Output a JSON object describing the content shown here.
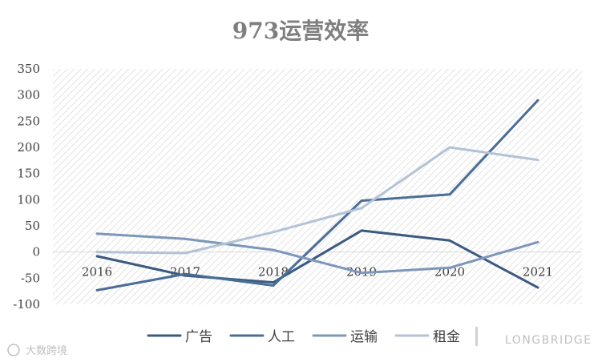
{
  "chart_data": {
    "type": "line",
    "title": "973运营效率",
    "categories": [
      "2016",
      "2017",
      "2018",
      "2019",
      "2020",
      "2021"
    ],
    "ylim": [
      -100,
      350
    ],
    "yticks": [
      350,
      300,
      250,
      200,
      150,
      100,
      50,
      0,
      -50,
      -100
    ],
    "grid": false,
    "legend_position": "bottom",
    "series": [
      {
        "name": "广告",
        "color": "#3b5a82",
        "values": [
          -8,
          -45,
          -58,
          41,
          22,
          -68
        ]
      },
      {
        "name": "人工",
        "color": "#4a6e98",
        "values": [
          -73,
          -42,
          -64,
          98,
          110,
          290
        ]
      },
      {
        "name": "运输",
        "color": "#7d97ba",
        "values": [
          35,
          25,
          4,
          -40,
          -30,
          19
        ]
      },
      {
        "name": "租金",
        "color": "#b3c2d6",
        "values": [
          0,
          -2,
          38,
          84,
          200,
          176
        ]
      }
    ]
  },
  "watermarks": {
    "left": "大数跨境",
    "right": "LONGBRIDGE"
  }
}
